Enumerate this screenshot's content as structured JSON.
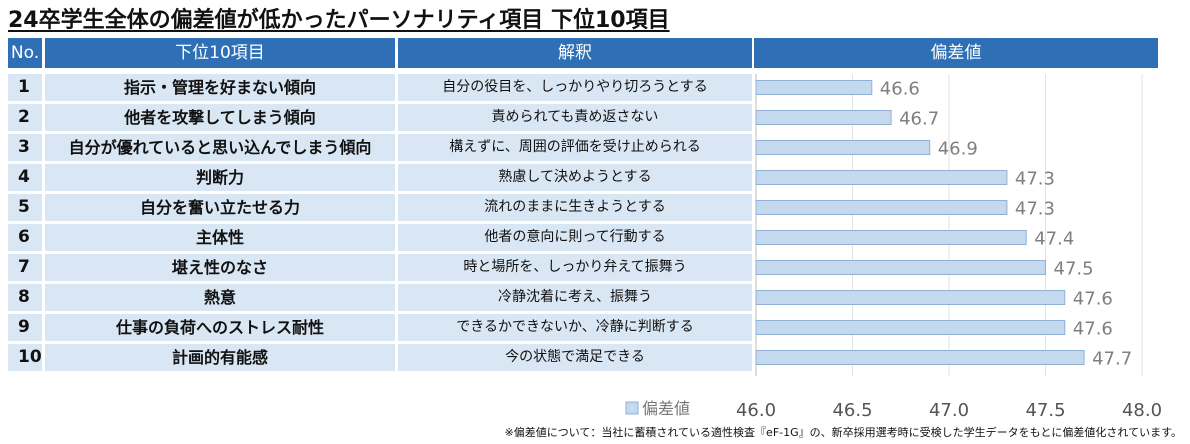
{
  "title": "24卒学生全体の偏差値が低かったパーソナリティ項目 下位10項目",
  "headers": {
    "no": "No.",
    "item": "下位10項目",
    "desc": "解釈",
    "value": "偏差値"
  },
  "footnote": "※偏差値について：当社に蓄積されている適性検査『eF-1G』の、新卒採用選考時に受検した学生データをもとに偏差値化されています。",
  "rows": [
    {
      "no": "1",
      "item": "指示・管理を好まない傾向",
      "desc": "自分の役目を、しっかりやり切ろうとする"
    },
    {
      "no": "2",
      "item": "他者を攻撃してしまう傾向",
      "desc": "責められても責め返さない"
    },
    {
      "no": "3",
      "item": "自分が優れていると思い込んでしまう傾向",
      "desc": "構えずに、周囲の評価を受け止められる"
    },
    {
      "no": "4",
      "item": "判断力",
      "desc": "熟慮して決めようとする"
    },
    {
      "no": "5",
      "item": "自分を奮い立たせる力",
      "desc": "流れのままに生きようとする"
    },
    {
      "no": "6",
      "item": "主体性",
      "desc": "他者の意向に則って行動する"
    },
    {
      "no": "7",
      "item": "堪え性のなさ",
      "desc": "時と場所を、しっかり弁えて振舞う"
    },
    {
      "no": "8",
      "item": "熱意",
      "desc": "冷静沈着に考え、振舞う"
    },
    {
      "no": "9",
      "item": "仕事の負荷へのストレス耐性",
      "desc": "できるかできないか、冷静に判断する"
    },
    {
      "no": "10",
      "item": "計画的有能感",
      "desc": "今の状態で満足できる"
    }
  ],
  "chart_data": {
    "type": "bar",
    "orientation": "horizontal",
    "categories": [
      "指示・管理を好まない傾向",
      "他者を攻撃してしまう傾向",
      "自分が優れていると思い込んでしまう傾向",
      "判断力",
      "自分を奮い立たせる力",
      "主体性",
      "堪え性のなさ",
      "熱意",
      "仕事の負荷へのストレス耐性",
      "計画的有能感"
    ],
    "series": [
      {
        "name": "偏差値",
        "values": [
          46.6,
          46.7,
          46.9,
          47.3,
          47.3,
          47.4,
          47.5,
          47.6,
          47.6,
          47.7
        ]
      }
    ],
    "data_labels": [
      "46.6",
      "46.7",
      "46.9",
      "47.3",
      "47.3",
      "47.4",
      "47.5",
      "47.6",
      "47.6",
      "47.7"
    ],
    "xlim": [
      46.0,
      48.0
    ],
    "xticks": [
      46.0,
      46.5,
      47.0,
      47.5,
      48.0
    ],
    "xtick_labels": [
      "46.0",
      "46.5",
      "47.0",
      "47.5",
      "48.0"
    ],
    "legend": "bottom-left",
    "grid": true,
    "bar_color": "#c5d9ee",
    "bar_edge_color": "#8fb1d6"
  }
}
